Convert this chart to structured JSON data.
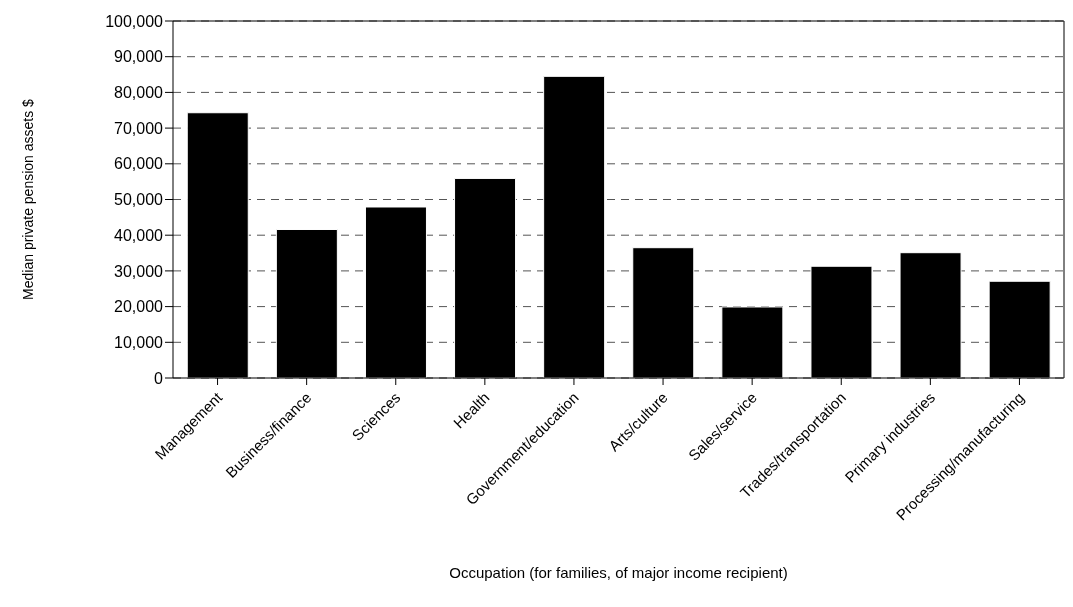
{
  "chart_data": {
    "type": "bar",
    "xlabel": "Occupation (for families, of major income recipient)",
    "ylabel": "Median private pension assets $",
    "categories": [
      "Management",
      "Business/finance",
      "Sciences",
      "Health",
      "Government/education",
      "Arts/culture",
      "Sales/service",
      "Trades/transportation",
      "Primary industries",
      "Processing/manufacturing"
    ],
    "values": [
      74300,
      41600,
      47900,
      55900,
      84500,
      36500,
      19900,
      31300,
      35100,
      27100
    ],
    "color": "#000000",
    "ylim": [
      0,
      100000
    ],
    "yticks": [
      0,
      {
        "value": 10000,
        "label": "10,000"
      },
      {
        "value": 20000,
        "label": "20,000"
      },
      {
        "value": 30000,
        "label": "30,000"
      },
      {
        "value": 40000,
        "label": "40,000"
      },
      {
        "value": 50000,
        "label": "50,000"
      },
      {
        "value": 60000,
        "label": "60,000"
      },
      {
        "value": 70000,
        "label": "70,000"
      },
      {
        "value": 80000,
        "label": "80,000"
      },
      {
        "value": 90000,
        "label": "90,000"
      },
      {
        "value": 100000,
        "label": "100,000"
      }
    ],
    "grid": "y"
  }
}
